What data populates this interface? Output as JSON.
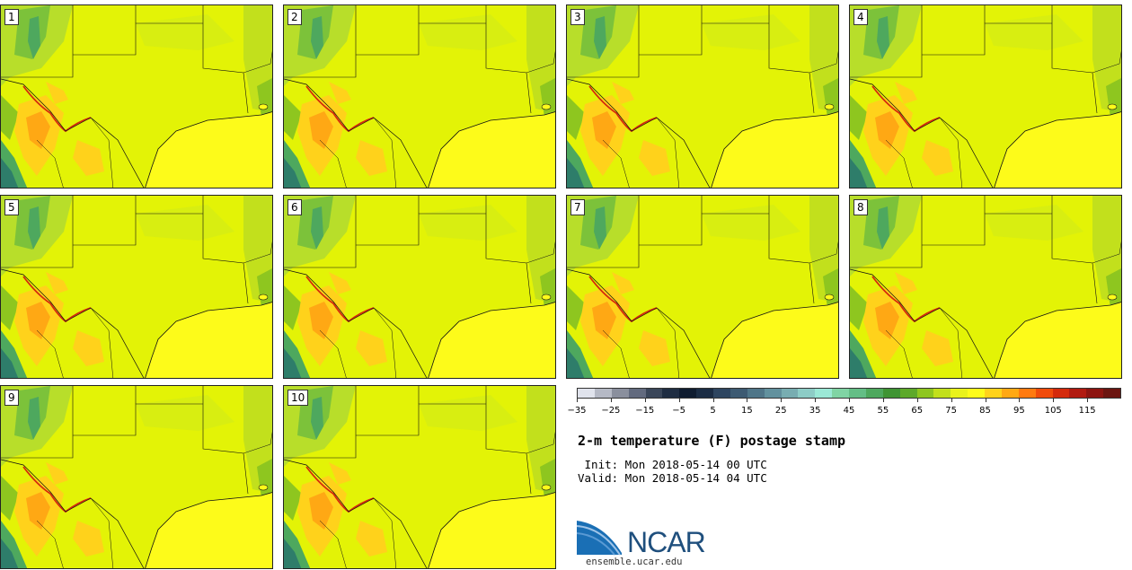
{
  "panels": [
    {
      "label": "1"
    },
    {
      "label": "2"
    },
    {
      "label": "3"
    },
    {
      "label": "4"
    },
    {
      "label": "5"
    },
    {
      "label": "6"
    },
    {
      "label": "7"
    },
    {
      "label": "8"
    },
    {
      "label": "9"
    },
    {
      "label": "10"
    }
  ],
  "colorbar": {
    "colors": [
      "#e0e3ec",
      "#b5b9c5",
      "#8a8f9d",
      "#626a7e",
      "#3a4659",
      "#1f2d42",
      "#0f1c30",
      "#1b2c44",
      "#2e4560",
      "#3d5a72",
      "#4f7588",
      "#62919e",
      "#78adb1",
      "#8dccc6",
      "#9be8d6",
      "#80d4a4",
      "#64be86",
      "#4ea85e",
      "#3f9434",
      "#5da92a",
      "#8ec61f",
      "#c2e01c",
      "#e9f21b",
      "#fdfb1a",
      "#ffd21b",
      "#ffa814",
      "#ff7a0f",
      "#f04b0b",
      "#d42a0c",
      "#b11a10",
      "#8d1410",
      "#6b1510"
    ],
    "tick_labels": [
      "−35",
      "−25",
      "−15",
      "−5",
      "5",
      "15",
      "25",
      "35",
      "45",
      "55",
      "65",
      "75",
      "85",
      "95",
      "105",
      "115"
    ]
  },
  "title": "2-m temperature (F) postage stamp",
  "init": " Init: Mon 2018-05-14 00 UTC",
  "valid": "Valid: Mon 2018-05-14 04 UTC",
  "logo_text": "NCAR",
  "url": "ensemble.ucar.edu"
}
